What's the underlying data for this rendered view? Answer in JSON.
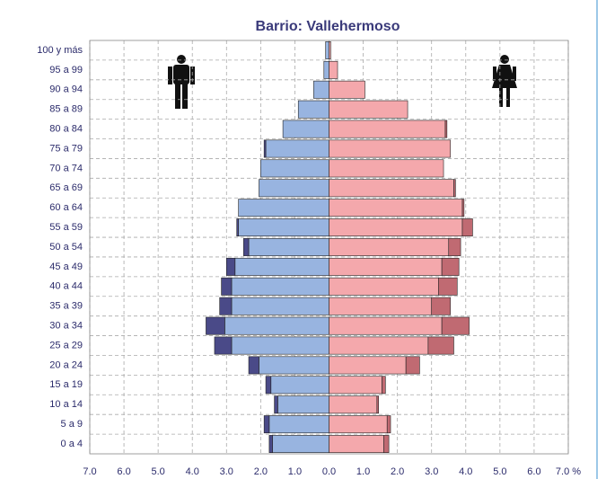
{
  "chart_data": {
    "type": "pyramid",
    "title": "Barrio: Vallehermoso",
    "categories": [
      "100 y más",
      "95 a 99",
      "90 a 94",
      "85 a 89",
      "80 a 84",
      "75 a 79",
      "70 a 74",
      "65 a 69",
      "60 a 64",
      "55 a 59",
      "50 a 54",
      "45 a 49",
      "40 a 44",
      "35 a 39",
      "30 a 34",
      "25 a 29",
      "20 a 24",
      "15 a 19",
      "10 a 14",
      "5 a 9",
      "0 a 4"
    ],
    "series": [
      {
        "color": "#98b4e0",
        "values": [
          -0.1,
          -0.15,
          -0.45,
          -0.9,
          -1.35,
          -1.85,
          -2.0,
          -2.05,
          -2.65,
          -2.65,
          -2.35,
          -2.75,
          -2.85,
          -2.85,
          -3.05,
          -2.85,
          -2.05,
          -1.7,
          -1.5,
          -1.75,
          -1.65
        ]
      },
      {
        "color": "#4a4a88",
        "values": [
          0,
          0,
          0,
          0,
          0,
          -0.05,
          0,
          0,
          0,
          -0.05,
          -0.15,
          -0.25,
          -0.3,
          -0.35,
          -0.55,
          -0.5,
          -0.3,
          -0.15,
          -0.1,
          -0.15,
          -0.1
        ]
      },
      {
        "color": "#f4a8ac",
        "values": [
          0.05,
          0.25,
          1.05,
          2.3,
          3.4,
          3.55,
          3.35,
          3.65,
          3.9,
          3.9,
          3.5,
          3.3,
          3.2,
          3.0,
          3.3,
          2.9,
          2.25,
          1.55,
          1.4,
          1.7,
          1.6
        ]
      },
      {
        "color": "#c06a72",
        "values": [
          0,
          0,
          0,
          0,
          0.05,
          0,
          0,
          0.05,
          0.05,
          0.3,
          0.35,
          0.5,
          0.55,
          0.55,
          0.8,
          0.75,
          0.4,
          0.1,
          0.05,
          0.1,
          0.15
        ]
      }
    ],
    "xlim": [
      -7,
      7
    ],
    "xticks": [
      {
        "value": -7,
        "label": "7.0"
      },
      {
        "value": -6,
        "label": "6.0"
      },
      {
        "value": -5,
        "label": "5.0"
      },
      {
        "value": -4,
        "label": "4.0"
      },
      {
        "value": -3,
        "label": "3.0"
      },
      {
        "value": -2,
        "label": "2.0"
      },
      {
        "value": -1,
        "label": "1.0"
      },
      {
        "value": 0,
        "label": "0.0"
      },
      {
        "value": 1,
        "label": "1.0"
      },
      {
        "value": 2,
        "label": "2.0"
      },
      {
        "value": 3,
        "label": "3.0"
      },
      {
        "value": 4,
        "label": "4.0"
      },
      {
        "value": 5,
        "label": "5.0"
      },
      {
        "value": 6,
        "label": "6.0"
      },
      {
        "value": 7,
        "label": "7.0 %"
      }
    ],
    "grid": true
  }
}
